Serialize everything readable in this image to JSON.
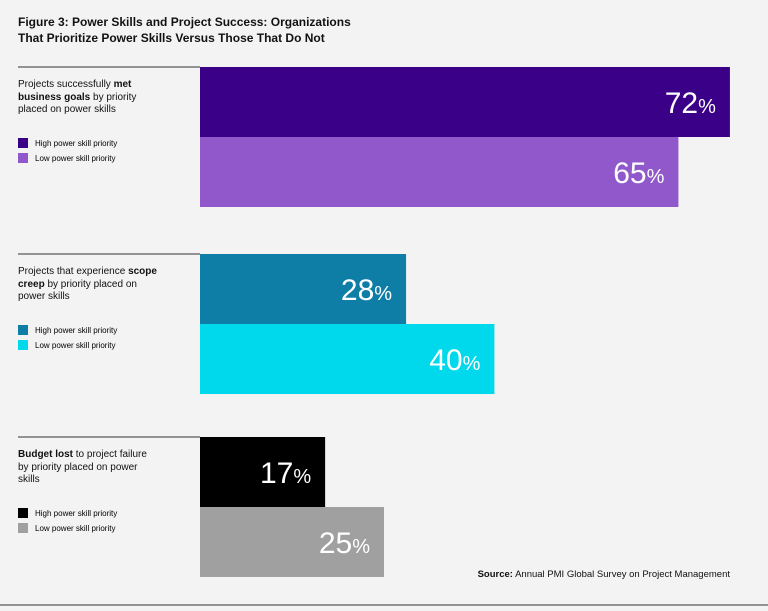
{
  "title": "Figure 3: Power Skills and Project Success: Organizations That Prioritize Power Skills Versus Those That Do Not",
  "source": [
    {
      "text": "Source:",
      "bold": true
    },
    {
      "text": " Annual PMI Global Survey on Project Management",
      "bold": false
    }
  ],
  "chart_data": [
    {
      "type": "bar",
      "orientation": "horizontal",
      "label": [
        {
          "text": "Projects successfully ",
          "bold": false
        },
        {
          "text": "met business goals",
          "bold": true
        },
        {
          "text": " by priority placed on power skills",
          "bold": false
        }
      ],
      "series": [
        {
          "name": "High power skill priority",
          "color": "#3a0088",
          "values": [
            72
          ],
          "value_labels": [
            "72%"
          ]
        },
        {
          "name": "Low power skill priority",
          "color": "#9158cc",
          "values": [
            65
          ],
          "value_labels": [
            "65%"
          ]
        }
      ]
    },
    {
      "type": "bar",
      "orientation": "horizontal",
      "label": [
        {
          "text": "Projects that experience ",
          "bold": false
        },
        {
          "text": "scope creep",
          "bold": true
        },
        {
          "text": " by priority placed on power skills",
          "bold": false
        }
      ],
      "series": [
        {
          "name": "High power skill priority",
          "color": "#0f7ea6",
          "values": [
            28
          ],
          "value_labels": [
            "28%"
          ]
        },
        {
          "name": "Low power skill priority",
          "color": "#00d9ec",
          "values": [
            40
          ],
          "value_labels": [
            "40%"
          ]
        }
      ]
    },
    {
      "type": "bar",
      "orientation": "horizontal",
      "label": [
        {
          "text": "Budget lost",
          "bold": true
        },
        {
          "text": " to project failure by priority placed on power skills",
          "bold": false
        }
      ],
      "series": [
        {
          "name": "High power skill priority",
          "color": "#000000",
          "values": [
            17
          ],
          "value_labels": [
            "17%"
          ]
        },
        {
          "name": "Low power skill priority",
          "color": "#a0a0a0",
          "values": [
            25
          ],
          "value_labels": [
            "25%"
          ]
        }
      ]
    }
  ]
}
